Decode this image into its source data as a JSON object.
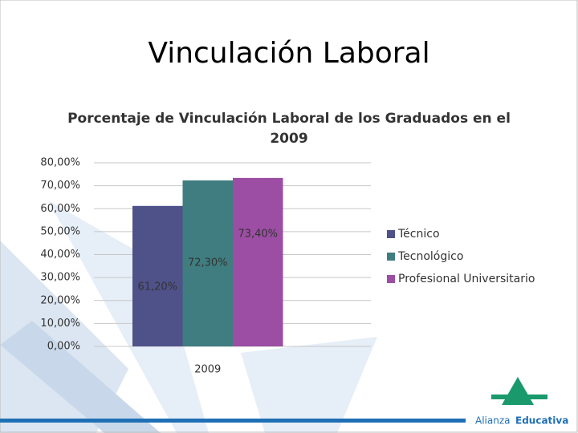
{
  "slide_title": "Vinculación Laboral",
  "logo": {
    "first": "Alianza",
    "second": "Educativa"
  },
  "chart_data": {
    "type": "bar",
    "title": "Porcentaje de Vinculación Laboral de los Graduados en el 2009",
    "categories": [
      "2009"
    ],
    "series": [
      {
        "name": "Técnico",
        "color": "#4f5189",
        "values": [
          61.2
        ],
        "value_labels": [
          "61,20%"
        ]
      },
      {
        "name": "Tecnológico",
        "color": "#3f7d80",
        "values": [
          72.3
        ],
        "value_labels": [
          "72,30%"
        ]
      },
      {
        "name": "Profesional Universitario",
        "color": "#9b4ea3",
        "values": [
          73.4
        ],
        "value_labels": [
          "73,40%"
        ]
      }
    ],
    "ylim": [
      0,
      80
    ],
    "yticks": [
      {
        "value": 0,
        "label": "0,00%"
      },
      {
        "value": 10,
        "label": "10,00%"
      },
      {
        "value": 20,
        "label": "20,00%"
      },
      {
        "value": 30,
        "label": "30,00%"
      },
      {
        "value": 40,
        "label": "40,00%"
      },
      {
        "value": 50,
        "label": "50,00%"
      },
      {
        "value": 60,
        "label": "60,00%"
      },
      {
        "value": 70,
        "label": "70,00%"
      },
      {
        "value": 80,
        "label": "80,00%"
      }
    ],
    "grid": true,
    "legend": "right"
  }
}
